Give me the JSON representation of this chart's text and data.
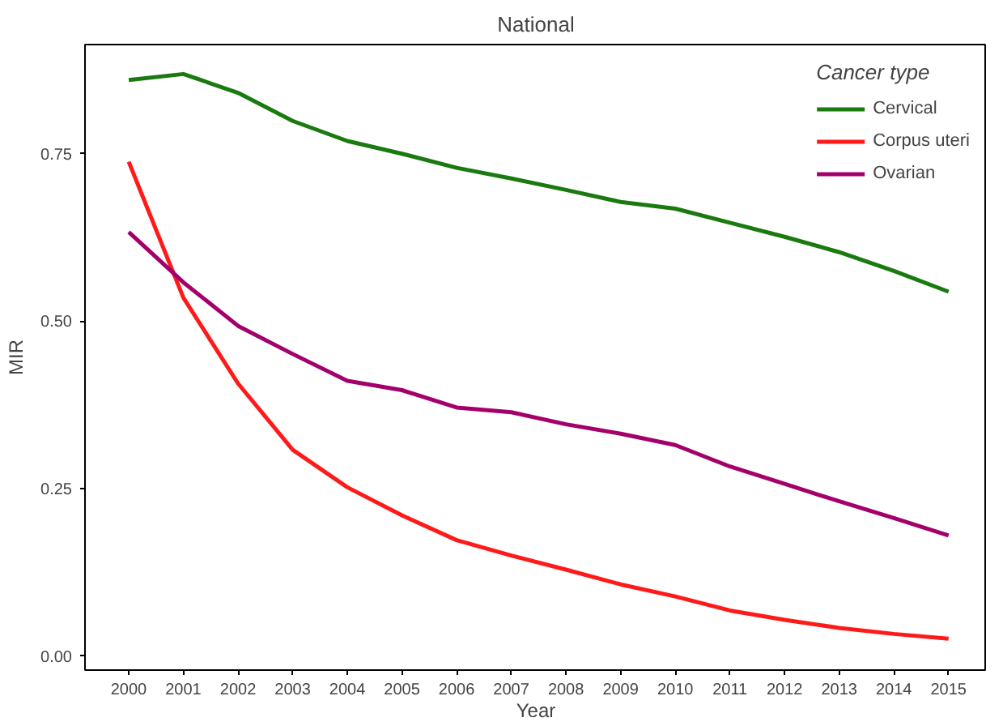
{
  "chart_data": {
    "type": "line",
    "title": "National",
    "xlabel": "Year",
    "ylabel": "MIR",
    "legend_title": "Cancer type",
    "x": [
      2000,
      2001,
      2002,
      2003,
      2004,
      2005,
      2006,
      2007,
      2008,
      2009,
      2010,
      2011,
      2012,
      2013,
      2014,
      2015
    ],
    "series": [
      {
        "name": "Cervical",
        "color": "#1a7a10",
        "values": [
          0.86,
          0.869,
          0.841,
          0.799,
          0.769,
          0.75,
          0.729,
          0.713,
          0.696,
          0.678,
          0.668,
          0.647,
          0.626,
          0.603,
          0.575,
          0.544
        ]
      },
      {
        "name": "Corpus uteri",
        "color": "#ff1a1a",
        "values": [
          0.738,
          0.535,
          0.407,
          0.308,
          0.252,
          0.21,
          0.173,
          0.15,
          0.129,
          0.107,
          0.089,
          0.068,
          0.054,
          0.042,
          0.033,
          0.026
        ]
      },
      {
        "name": "Ovarian",
        "color": "#a3006b",
        "values": [
          0.633,
          0.558,
          0.493,
          0.451,
          0.411,
          0.397,
          0.371,
          0.364,
          0.346,
          0.332,
          0.315,
          0.283,
          0.257,
          0.231,
          0.206,
          0.18
        ]
      }
    ],
    "xlim": [
      1999.2,
      2015.7
    ],
    "xticks": [
      2000,
      2001,
      2002,
      2003,
      2004,
      2005,
      2006,
      2007,
      2008,
      2009,
      2010,
      2011,
      2012,
      2013,
      2014,
      2015
    ],
    "ylim": [
      -0.021,
      0.913
    ],
    "yticks": [
      {
        "value": 0,
        "label": "0.00"
      },
      0.25,
      {
        "value": 0.5,
        "label": "0.50"
      },
      0.75
    ],
    "grid": false,
    "legend": "top right",
    "line_style": "solid",
    "marker": "none"
  }
}
